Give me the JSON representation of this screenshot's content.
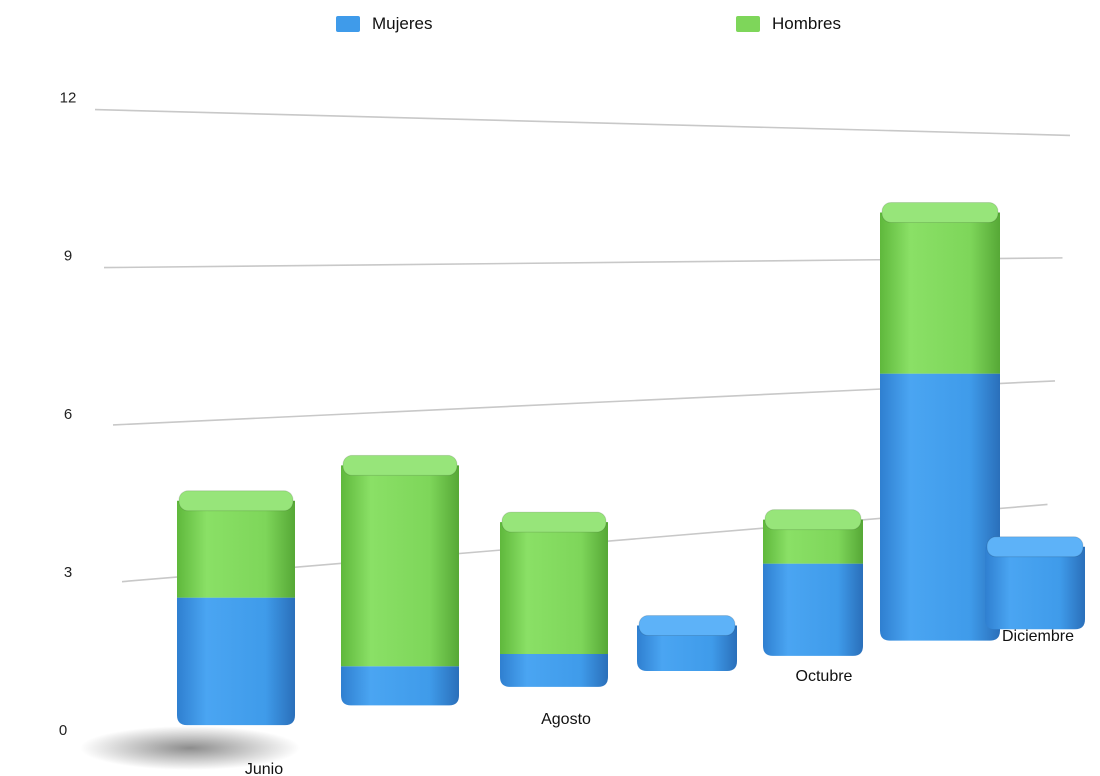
{
  "chart_data": {
    "type": "bar",
    "stacked": true,
    "categories": [
      "Junio",
      "",
      "Agosto",
      "",
      "Octubre",
      "",
      "Diciembre"
    ],
    "series": [
      {
        "name": "Mujeres",
        "color": "#3f9bea",
        "values": [
          2.5,
          0.8,
          0.7,
          1,
          2.1,
          6.3,
          2
        ]
      },
      {
        "name": "Hombres",
        "color": "#7ed65a",
        "values": [
          1.9,
          4.1,
          2.8,
          0,
          1,
          3.8,
          0
        ]
      }
    ],
    "title": "",
    "xlabel": "",
    "ylabel": "",
    "ylim": [
      0,
      12
    ],
    "yticks": [
      0,
      3,
      6,
      9,
      12
    ],
    "grid": true,
    "legend_position": "top"
  }
}
